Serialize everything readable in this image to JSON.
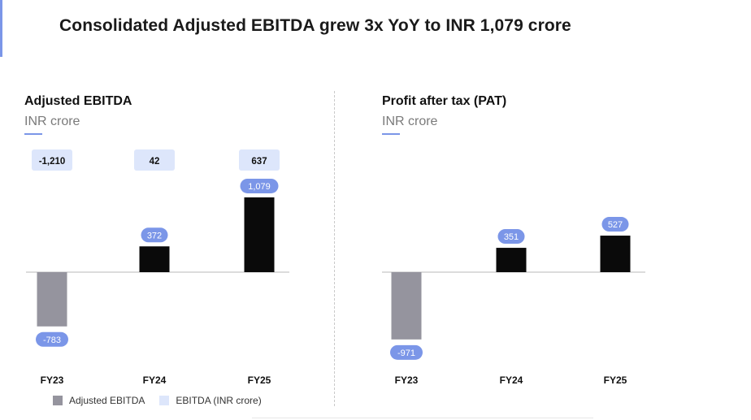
{
  "page": {
    "title": "Consolidated Adjusted EBITDA grew 3x YoY to INR 1,079 crore"
  },
  "legend": {
    "items": [
      {
        "label": "Adjusted EBITDA",
        "color": "#95949e"
      },
      {
        "label": "EBITDA (INR crore)",
        "color": "#dde6fb"
      }
    ]
  },
  "colors": {
    "accent": "#7b96e8",
    "negative_bar": "#95949e",
    "positive_bar": "#0a0a0a",
    "pill": "#7b96e8",
    "ebitda_box": "#dde6fb"
  },
  "chart_data": [
    {
      "type": "bar",
      "title": "Adjusted EBITDA",
      "subtitle": "INR crore",
      "categories": [
        "FY23",
        "FY24",
        "FY25"
      ],
      "values": [
        -783,
        372,
        1079
      ],
      "value_labels": [
        "-783",
        "372",
        "1,079"
      ],
      "ebitda_series": {
        "name": "EBITDA (INR crore)",
        "values": [
          -1210,
          42,
          637
        ],
        "labels": [
          "-1,210",
          "42",
          "637"
        ]
      },
      "ylim": [
        -1150,
        1350
      ]
    },
    {
      "type": "bar",
      "title": "Profit after tax (PAT)",
      "subtitle": "INR crore",
      "categories": [
        "FY23",
        "FY24",
        "FY25"
      ],
      "values": [
        -971,
        351,
        527
      ],
      "value_labels": [
        "-971",
        "351",
        "527"
      ],
      "ylim": [
        -1150,
        1350
      ]
    }
  ]
}
